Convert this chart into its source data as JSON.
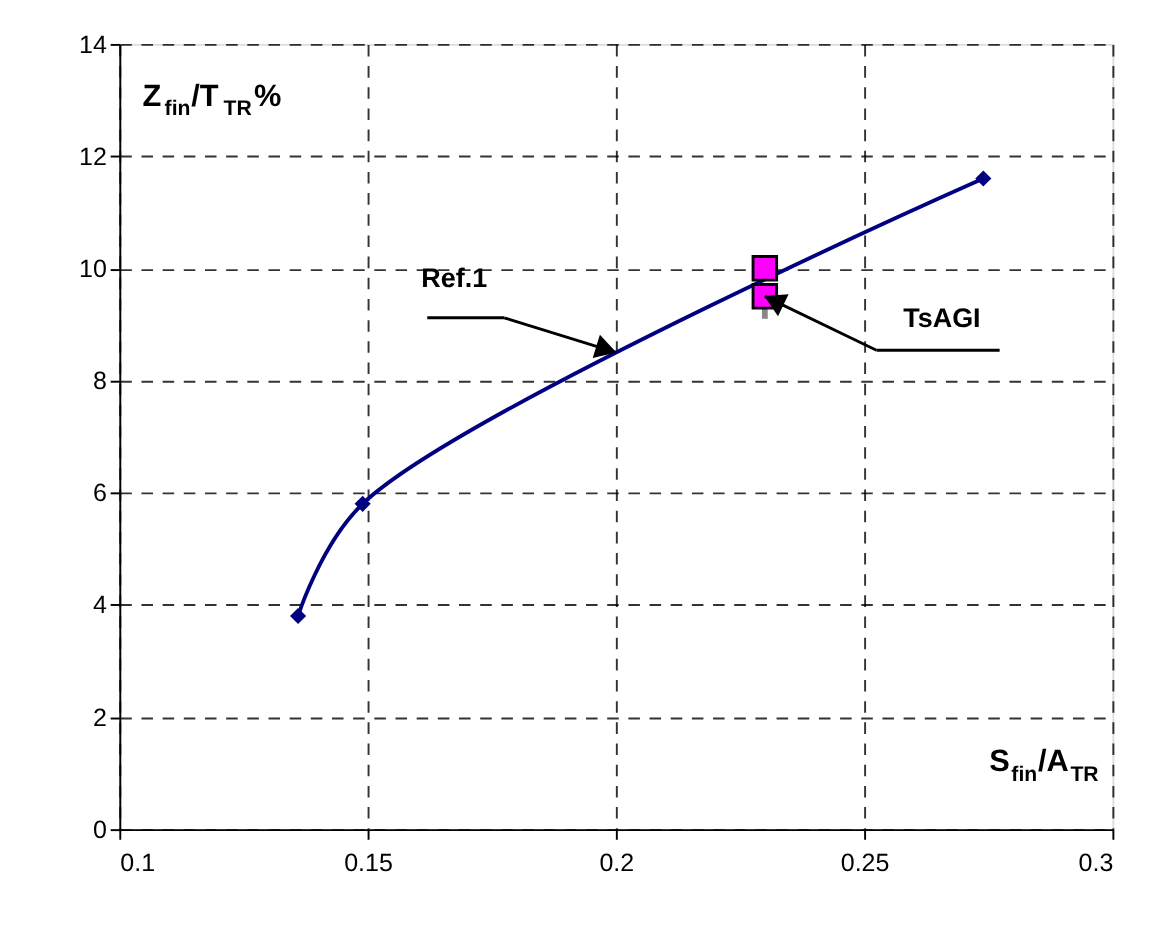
{
  "chart_data": {
    "type": "line",
    "xlabel": "S$_{fin}$/A$_{TR}$",
    "ylabel": "Z$_{fin}$/T$_{TR}$%",
    "series": [
      {
        "type": "line",
        "color": "#000080",
        "marker": "diamond",
        "x": [
          0.136,
          0.149,
          0.274
        ],
        "values": [
          3.8,
          5.8,
          11.6
        ]
      },
      {
        "type": "scatter",
        "color": "#ff00ff",
        "marker": "square",
        "x": [
          0.23,
          0.23
        ],
        "values": [
          10.0,
          9.5
        ],
        "errors": [
          null,
          [
            9.1,
            9.5
          ]
        ]
      }
    ],
    "annotations": [
      {
        "text": "Ref.1",
        "x": 0.2,
        "y": 8.5
      },
      {
        "text": "TsAGI",
        "x": 0.23,
        "y": 9.5
      }
    ],
    "xlim": [
      0.1,
      0.3
    ],
    "xticks": [
      0.1,
      0.15,
      0.2,
      0.25,
      0.3
    ],
    "ylim": [
      0,
      14
    ],
    "yticks": [
      0,
      2,
      4,
      6,
      8,
      10,
      12,
      14
    ],
    "grid": true,
    "line_style": "solid"
  }
}
